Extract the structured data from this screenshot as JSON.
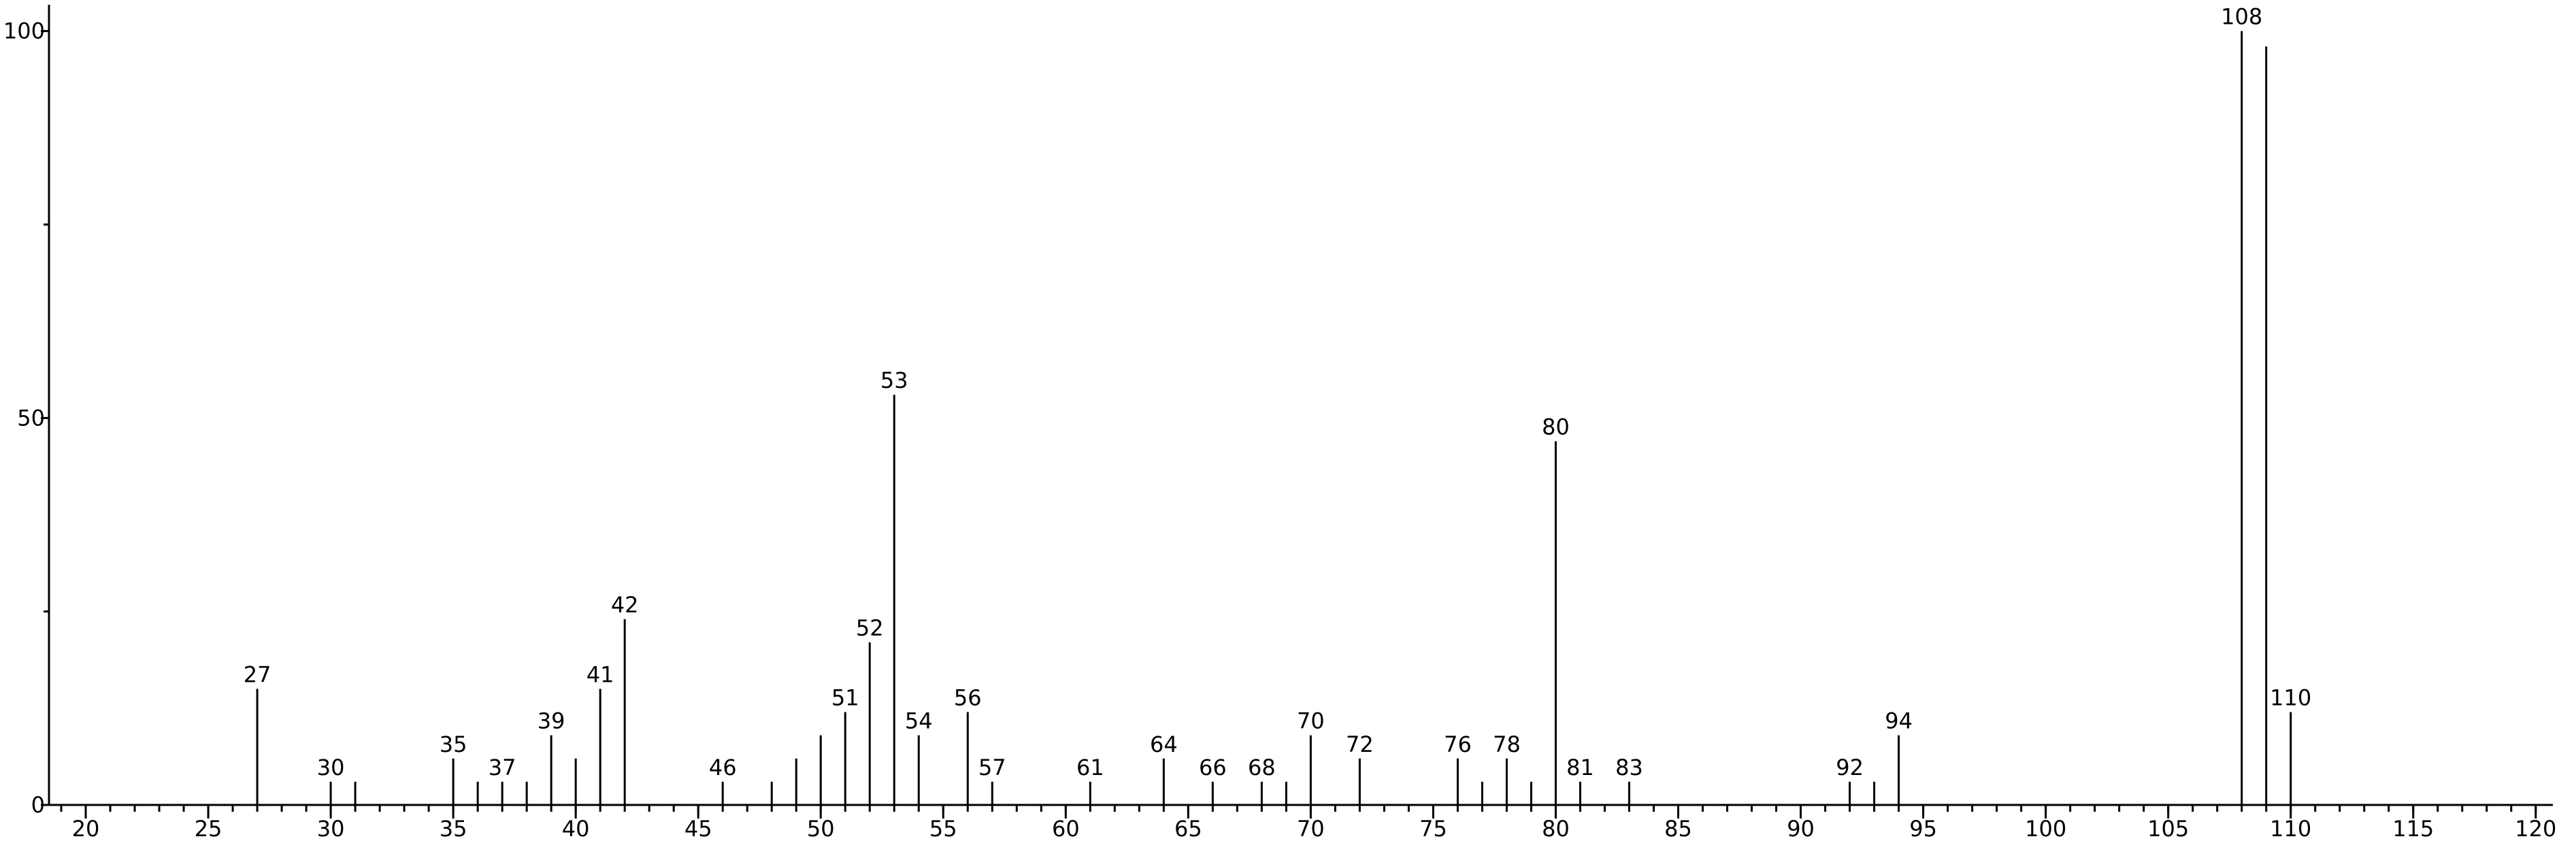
{
  "chart_data": {
    "type": "stem",
    "x": [
      27,
      30,
      31,
      35,
      36,
      37,
      38,
      39,
      40,
      41,
      42,
      46,
      48,
      49,
      50,
      51,
      52,
      53,
      54,
      56,
      57,
      61,
      64,
      66,
      68,
      69,
      70,
      72,
      76,
      77,
      78,
      79,
      80,
      81,
      83,
      92,
      93,
      94,
      108,
      109,
      110
    ],
    "values": [
      15,
      3,
      3,
      6,
      3,
      3,
      3,
      9,
      6,
      15,
      24,
      3,
      3,
      6,
      9,
      12,
      21,
      53,
      9,
      12,
      3,
      3,
      6,
      3,
      3,
      3,
      9,
      6,
      6,
      3,
      6,
      3,
      47,
      3,
      3,
      3,
      3,
      9,
      100,
      98,
      12
    ],
    "peak_labels": [
      27,
      30,
      null,
      35,
      null,
      37,
      null,
      39,
      null,
      41,
      42,
      46,
      null,
      null,
      null,
      51,
      52,
      53,
      54,
      56,
      57,
      61,
      64,
      66,
      68,
      null,
      70,
      72,
      76,
      null,
      78,
      null,
      80,
      81,
      83,
      92,
      null,
      94,
      108,
      null,
      110
    ],
    "color": "#000000",
    "xlim": [
      18.5,
      120.7
    ],
    "xticks": [
      20,
      25,
      30,
      35,
      40,
      45,
      50,
      55,
      60,
      65,
      70,
      75,
      80,
      85,
      90,
      95,
      100,
      105,
      110,
      115,
      120
    ],
    "xminor_step": 1,
    "ylim": [
      0,
      103.4
    ],
    "yticks": [
      0,
      50,
      100
    ],
    "yminor_ticks": [
      25,
      75
    ]
  }
}
